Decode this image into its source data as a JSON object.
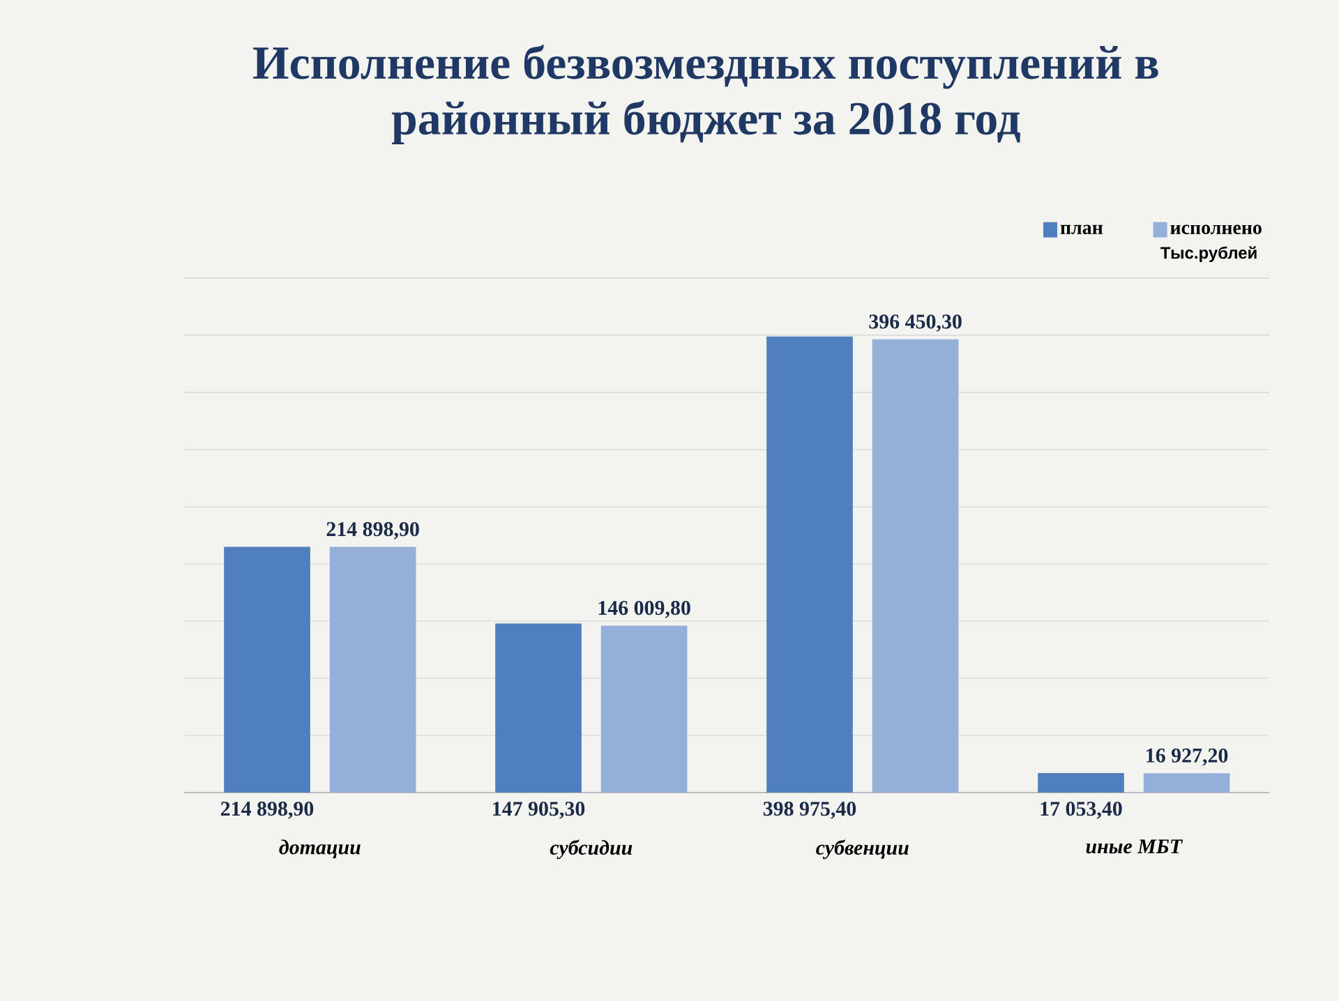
{
  "chart_data": {
    "type": "bar",
    "title": "Исполнение безвозмездных поступлений в районный бюджет за 2018 год",
    "categories": [
      "дотации",
      "субсидии",
      "субвенции",
      "иные МБТ"
    ],
    "series": [
      {
        "name": "план",
        "color": "#4f7fbc",
        "values": [
          214898.9,
          147905.3,
          398975.4,
          17053.4
        ],
        "value_labels": [
          "214 898,90",
          "147 905,30",
          "398 975,40",
          "17 053,40"
        ]
      },
      {
        "name": "исполнено",
        "color": "#95b0d8",
        "values": [
          214898.9,
          146009.8,
          396450.3,
          16927.2
        ],
        "value_labels": [
          "214 898,90",
          "146 009,80",
          "396 450,30",
          "16 927,20"
        ]
      }
    ],
    "annotations": [
      "Тыс.рублей"
    ],
    "ylim": [
      0,
      450000
    ],
    "yticks": [
      {
        "value": 0,
        "label": null
      },
      {
        "value": 50000,
        "label": null
      },
      {
        "value": 100000,
        "label": null
      },
      {
        "value": 150000,
        "label": null
      },
      {
        "value": 200000,
        "label": null
      },
      {
        "value": 250000,
        "label": null
      },
      {
        "value": 300000,
        "label": null
      },
      {
        "value": 350000,
        "label": null
      },
      {
        "value": 400000,
        "label": null
      },
      {
        "value": 450000,
        "label": null
      }
    ],
    "grid": "y",
    "legend": "top right",
    "tick_labels": "x"
  }
}
